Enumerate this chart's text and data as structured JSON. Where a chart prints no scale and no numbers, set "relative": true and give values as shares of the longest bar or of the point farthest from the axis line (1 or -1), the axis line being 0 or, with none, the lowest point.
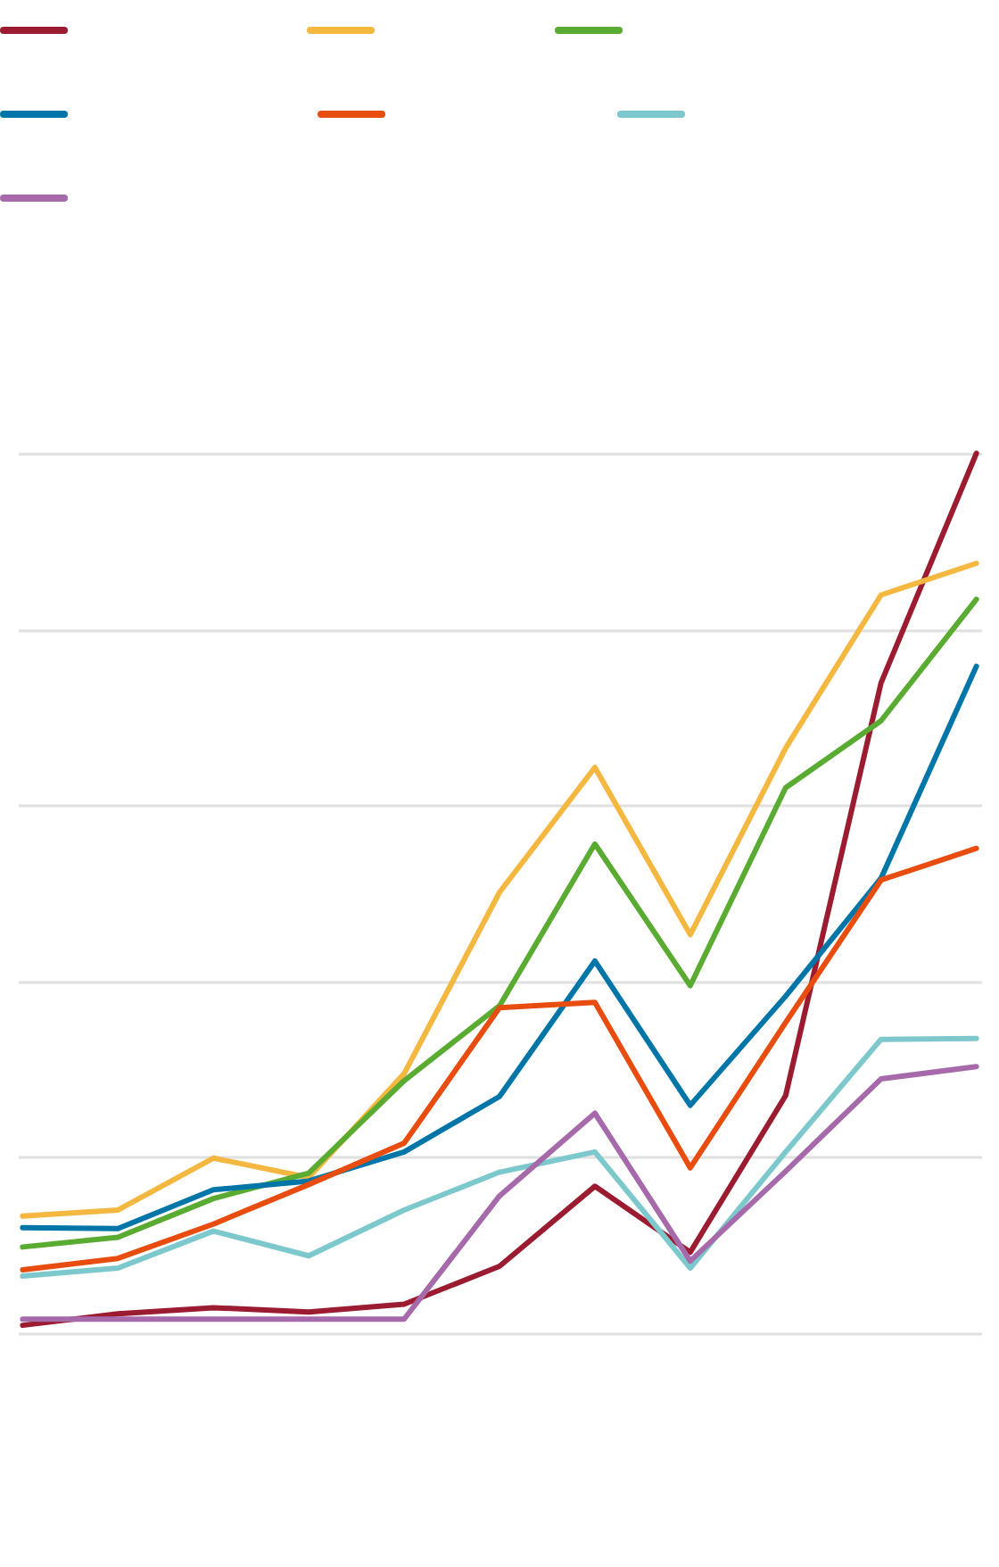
{
  "chart_data": {
    "type": "line",
    "relative": true,
    "grid": "y",
    "tick_labels": false,
    "categories": [
      null,
      null,
      null,
      null,
      null,
      null,
      null,
      null,
      null,
      null,
      null
    ],
    "series": [
      {
        "color": "#9b1b30",
        "values": [
          0.009,
          0.022,
          0.029,
          0.024,
          0.033,
          0.076,
          0.167,
          0.092,
          0.27,
          0.739,
          1
        ]
      },
      {
        "color": "#f4b73f",
        "values": [
          0.133,
          0.14,
          0.199,
          0.177,
          0.295,
          0.501,
          0.643,
          0.453,
          0.665,
          0.839,
          0.875
        ]
      },
      {
        "color": "#5aab32",
        "values": [
          0.098,
          0.109,
          0.153,
          0.182,
          0.287,
          0.372,
          0.556,
          0.395,
          0.62,
          0.696,
          0.834
        ]
      },
      {
        "color": "#0076a8",
        "values": [
          0.12,
          0.119,
          0.163,
          0.173,
          0.206,
          0.269,
          0.423,
          0.259,
          0.383,
          0.517,
          0.758
        ]
      },
      {
        "color": "#e84c0e",
        "values": [
          0.072,
          0.085,
          0.124,
          0.169,
          0.216,
          0.37,
          0.376,
          0.188,
          0.353,
          0.515,
          0.551
        ]
      },
      {
        "color": "#7dc8cc",
        "values": [
          0.065,
          0.074,
          0.116,
          0.088,
          0.14,
          0.183,
          0.206,
          0.074,
          0.206,
          0.334,
          0.335
        ]
      },
      {
        "color": "#a66aab",
        "values": [
          0.016,
          0.016,
          0.016,
          0.016,
          0.016,
          0.156,
          0.25,
          0.082,
          0.184,
          0.289,
          0.303
        ]
      }
    ]
  }
}
